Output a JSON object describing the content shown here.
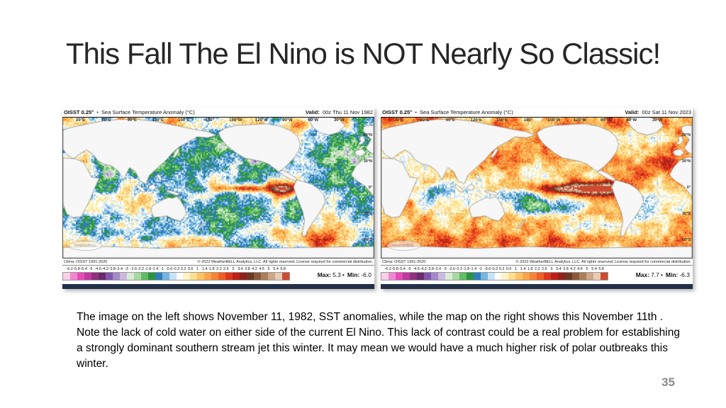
{
  "slide": {
    "title": "This Fall The El Nino is NOT Nearly So Classic!",
    "body_text": "The image on the left shows November 11, 1982, SST anomalies, while the map on the right shows this November 11th .  Note the lack of cold water  on either side of the current El Nino.  This lack of contrast could be a real problem for establishing a strongly dominant southern stream jet this winter.  It may mean we would have a much higher risk of  polar outbreaks this winter.",
    "page_number": "35"
  },
  "labels": {
    "bullet": "•",
    "valid": "Valid:",
    "max": "Max:",
    "min": "Min:",
    "dot": "•"
  },
  "maps": [
    {
      "product": "OISST 0.25°",
      "subtitle": "Sea Surface Temperature Anomaly (°C)",
      "valid": "00z Thu 11 Nov 1982",
      "climatology": "Clima: OISST 1991-2020",
      "copyright": "© 2022 WeatherBELL Analytics, LLC. All rights reserved. License required for commercial distribution.",
      "max": "5.3",
      "min": "-6.0",
      "watermark": "WeatherBELL"
    },
    {
      "product": "OISST 0.25°",
      "subtitle": "Sea Surface Temperature Anomaly (°C)",
      "valid": "00z Sat 11 Nov 2023",
      "climatology": "Clima: OISST 1991-2020",
      "copyright": "© 2023 WeatherBELL Analytics, LLC. All rights reserved. License required for commercial distribution.",
      "max": "7.7",
      "min": "-6.3",
      "watermark": "WeatherBELL"
    }
  ],
  "axes": {
    "lon_labels": [
      "30°E",
      "60°E",
      "90°E",
      "120°E",
      "150°E",
      "180°",
      "150°W",
      "120°W",
      "90°W",
      "60°W",
      "30°W"
    ],
    "lat_labels": [
      "60°N",
      "30°N",
      "0°",
      "30°S",
      "60°S"
    ]
  },
  "colorbar": {
    "tick_labels": [
      "-6.2",
      "-5.8",
      "-5.4",
      "-5",
      "-4.6",
      "-4.2",
      "-3.8",
      "-3.4",
      "-3",
      "-2.6",
      "-2.2",
      "-1.8",
      "-1.4",
      "-1",
      "-0.6",
      "-0.2",
      "0.2",
      "0.6",
      "1",
      "1.4",
      "1.8",
      "2.2",
      "2.6",
      "3",
      "3.4",
      "3.8",
      "4.2",
      "4.6",
      "5",
      "5.4",
      "5.8"
    ],
    "colors": [
      "#f9cfe9",
      "#f286d1",
      "#e84bb8",
      "#c23a9f",
      "#93307f",
      "#6b2a6b",
      "#8257ae",
      "#a489cb",
      "#cbb9e2",
      "#d9ecd5",
      "#a8d9a1",
      "#5fbd63",
      "#2b9440",
      "#2e7ebc",
      "#74b6e0",
      "#c6e3f4",
      "#ffffff",
      "#fff3c4",
      "#fedf8d",
      "#fdc363",
      "#fda647",
      "#fb8433",
      "#f15d22",
      "#dd361c",
      "#bc2018",
      "#93211c",
      "#6c3a22",
      "#8a5a3a",
      "#ab7f59",
      "#cda687",
      "#e8cbb3",
      "#cf4a2e"
    ]
  }
}
